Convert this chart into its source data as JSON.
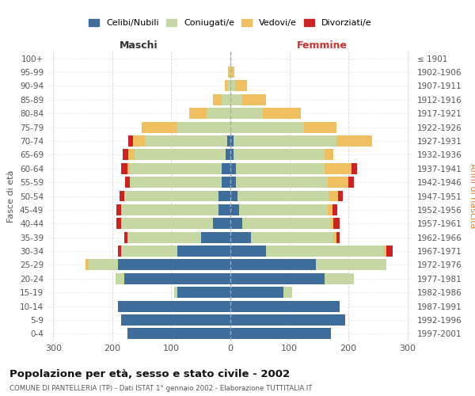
{
  "age_groups": [
    "0-4",
    "5-9",
    "10-14",
    "15-19",
    "20-24",
    "25-29",
    "30-34",
    "35-39",
    "40-44",
    "45-49",
    "50-54",
    "55-59",
    "60-64",
    "65-69",
    "70-74",
    "75-79",
    "80-84",
    "85-89",
    "90-94",
    "95-99",
    "100+"
  ],
  "birth_years": [
    "1997-2001",
    "1992-1996",
    "1987-1991",
    "1982-1986",
    "1977-1981",
    "1972-1976",
    "1967-1971",
    "1962-1966",
    "1957-1961",
    "1952-1956",
    "1947-1951",
    "1942-1946",
    "1937-1941",
    "1932-1936",
    "1927-1931",
    "1922-1926",
    "1917-1921",
    "1912-1916",
    "1907-1911",
    "1902-1906",
    "≤ 1901"
  ],
  "maschi_celibi": [
    175,
    185,
    190,
    90,
    180,
    190,
    90,
    50,
    30,
    20,
    20,
    15,
    15,
    8,
    5,
    0,
    0,
    0,
    0,
    0,
    0
  ],
  "maschi_coniugati": [
    0,
    0,
    0,
    5,
    15,
    50,
    95,
    125,
    155,
    165,
    160,
    155,
    155,
    155,
    140,
    90,
    40,
    15,
    5,
    2,
    0
  ],
  "maschi_vedovi": [
    0,
    0,
    0,
    0,
    0,
    5,
    0,
    0,
    0,
    0,
    0,
    0,
    5,
    10,
    20,
    60,
    30,
    15,
    5,
    2,
    0
  ],
  "maschi_divorziati": [
    0,
    0,
    0,
    0,
    0,
    0,
    5,
    5,
    8,
    8,
    8,
    8,
    10,
    10,
    8,
    0,
    0,
    0,
    0,
    0,
    0
  ],
  "femmine_celibi": [
    170,
    195,
    185,
    90,
    160,
    145,
    60,
    35,
    20,
    15,
    12,
    10,
    10,
    5,
    5,
    0,
    0,
    0,
    0,
    0,
    0
  ],
  "femmine_coniugati": [
    0,
    0,
    0,
    15,
    50,
    120,
    200,
    140,
    150,
    150,
    155,
    155,
    150,
    155,
    175,
    125,
    55,
    20,
    8,
    2,
    0
  ],
  "femmine_vedovi": [
    0,
    0,
    0,
    0,
    0,
    0,
    5,
    5,
    5,
    8,
    15,
    35,
    45,
    15,
    60,
    55,
    65,
    40,
    20,
    5,
    2
  ],
  "femmine_divorziati": [
    0,
    0,
    0,
    0,
    0,
    0,
    10,
    5,
    10,
    8,
    8,
    10,
    10,
    0,
    0,
    0,
    0,
    0,
    0,
    0,
    0
  ],
  "color_celibi": "#3e6d9c",
  "color_coniugati": "#c5d8a4",
  "color_vedovi": "#f0c060",
  "color_divorziati": "#cc2222",
  "title": "Popolazione per età, sesso e stato civile - 2002",
  "subtitle": "COMUNE DI PANTELLERIA (TP) - Dati ISTAT 1° gennaio 2002 - Elaborazione TUTTITALIA.IT",
  "ylabel_left": "Fasce di età",
  "ylabel_right": "Anni di nascita",
  "xlabel_left": "Maschi",
  "xlabel_right": "Femmine",
  "legend_labels": [
    "Celibi/Nubili",
    "Coniugati/e",
    "Vedovi/e",
    "Divorziati/e"
  ],
  "xlim": 310,
  "bg_color": "#ffffff",
  "grid_color": "#cccccc",
  "bar_height": 0.8
}
